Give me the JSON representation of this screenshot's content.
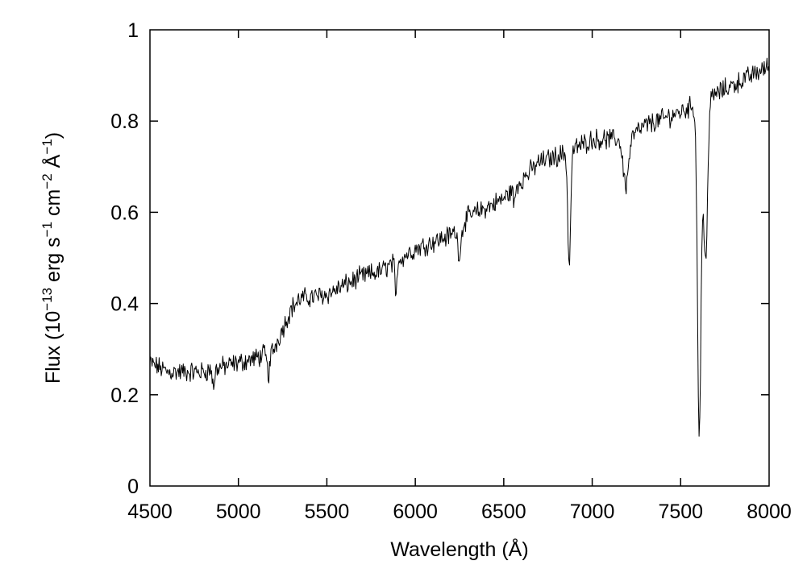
{
  "chart_data": {
    "type": "line",
    "xlabel": "Wavelength (Å)",
    "ylabel": {
      "prefix": "Flux (10",
      "exp1": "−13",
      "mid1": " erg s",
      "exp2": "−1",
      "mid2": " cm",
      "exp3": "−2",
      "mid3": " Å",
      "exp4": "−1",
      "suffix": ")"
    },
    "xlim": [
      4500,
      8000
    ],
    "ylim": [
      0,
      1
    ],
    "x_ticks": [
      4500,
      5000,
      5500,
      6000,
      6500,
      7000,
      7500,
      8000
    ],
    "x_tick_labels": [
      "4500",
      "5000",
      "5500",
      "6000",
      "6500",
      "7000",
      "7500",
      "8000"
    ],
    "y_ticks": [
      0,
      0.2,
      0.4,
      0.6,
      0.8,
      1
    ],
    "y_tick_labels": [
      "0",
      "0.2",
      "0.4",
      "0.6",
      "0.8",
      "1"
    ],
    "grid": false,
    "line_color": "#000000",
    "continuum": [
      [
        4500,
        0.27
      ],
      [
        4600,
        0.25
      ],
      [
        4700,
        0.25
      ],
      [
        4800,
        0.25
      ],
      [
        4900,
        0.26
      ],
      [
        5000,
        0.27
      ],
      [
        5100,
        0.28
      ],
      [
        5200,
        0.3
      ],
      [
        5300,
        0.39
      ],
      [
        5350,
        0.41
      ],
      [
        5500,
        0.42
      ],
      [
        5700,
        0.46
      ],
      [
        5800,
        0.47
      ],
      [
        6000,
        0.52
      ],
      [
        6200,
        0.55
      ],
      [
        6300,
        0.59
      ],
      [
        6500,
        0.63
      ],
      [
        6700,
        0.71
      ],
      [
        6850,
        0.73
      ],
      [
        7000,
        0.76
      ],
      [
        7200,
        0.76
      ],
      [
        7300,
        0.79
      ],
      [
        7500,
        0.82
      ],
      [
        7600,
        0.84
      ],
      [
        7700,
        0.86
      ],
      [
        7800,
        0.88
      ],
      [
        7900,
        0.9
      ],
      [
        8000,
        0.92
      ]
    ],
    "absorption_lines": [
      {
        "center": 4860,
        "depth": 0.04,
        "width": 6
      },
      {
        "center": 5170,
        "depth": 0.05,
        "width": 8
      },
      {
        "center": 5890,
        "depth": 0.09,
        "width": 5
      },
      {
        "center": 6250,
        "depth": 0.06,
        "width": 10
      },
      {
        "center": 6560,
        "depth": 0.04,
        "width": 5
      },
      {
        "center": 6870,
        "depth": 0.25,
        "width": 8
      },
      {
        "center": 7190,
        "depth": 0.1,
        "width": 15
      },
      {
        "center": 7605,
        "depth": 0.72,
        "width": 10
      },
      {
        "center": 7640,
        "depth": 0.35,
        "width": 12
      }
    ],
    "noise_amplitude": 0.018,
    "sample_step": 4
  }
}
